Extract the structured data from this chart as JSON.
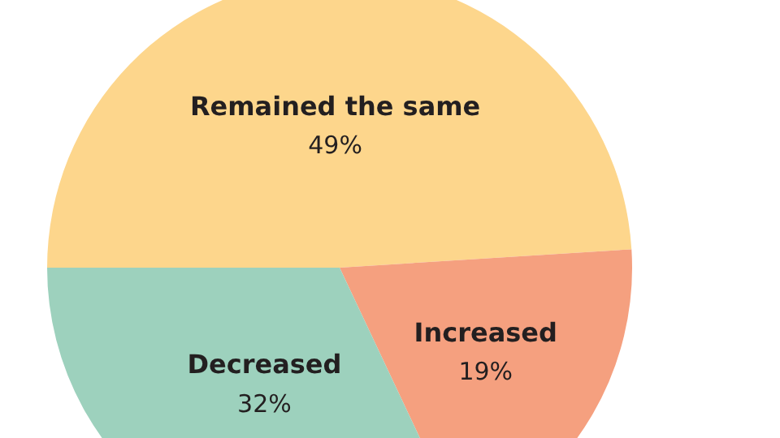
{
  "chart_data": {
    "type": "pie",
    "categories": [
      "Remained the same",
      "Increased",
      "Decreased"
    ],
    "values": [
      49,
      19,
      32
    ],
    "colors": [
      "#fdd68c",
      "#f5a07f",
      "#9dd1bd"
    ],
    "value_labels": [
      "49%",
      "19%",
      "32%"
    ],
    "legend": false
  }
}
